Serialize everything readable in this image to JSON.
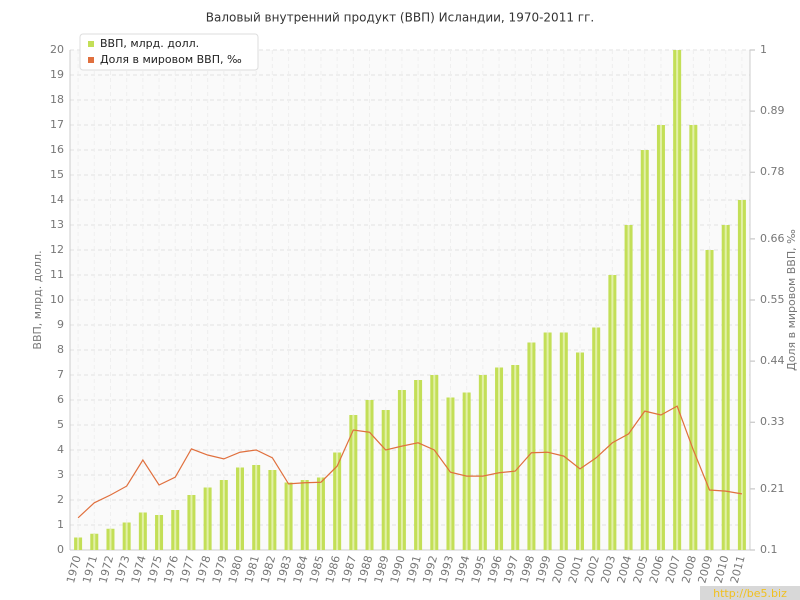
{
  "chart_data": {
    "type": "bar_line",
    "title": "Валовый внутренний продукт (ВВП) Исландии, 1970-2011 гг.",
    "y_label": "ВВП, млрд. долл.",
    "y2_label": "Доля в мировом ВВП, ‰",
    "watermark": "http://be5.biz",
    "legend": "top-left",
    "grid": true,
    "categories": [
      "1970",
      "1971",
      "1972",
      "1973",
      "1974",
      "1975",
      "1976",
      "1977",
      "1978",
      "1979",
      "1980",
      "1981",
      "1982",
      "1983",
      "1984",
      "1985",
      "1986",
      "1987",
      "1988",
      "1989",
      "1990",
      "1991",
      "1992",
      "1993",
      "1994",
      "1995",
      "1996",
      "1997",
      "1998",
      "1999",
      "2000",
      "2001",
      "2002",
      "2003",
      "2004",
      "2005",
      "2006",
      "2007",
      "2008",
      "2009",
      "2010",
      "2011"
    ],
    "series": [
      {
        "name": "ВВП, млрд. долл.",
        "color": "#c3df57",
        "kind": "bar",
        "values": [
          0.5,
          0.65,
          0.85,
          1.1,
          1.5,
          1.4,
          1.6,
          2.2,
          2.5,
          2.8,
          3.3,
          3.4,
          3.2,
          2.7,
          2.8,
          2.9,
          3.9,
          5.4,
          6.0,
          5.6,
          6.4,
          6.8,
          7.0,
          6.1,
          6.3,
          7.0,
          7.3,
          7.4,
          8.3,
          8.7,
          8.7,
          7.9,
          8.9,
          11,
          13,
          16,
          17,
          20,
          17,
          12,
          13,
          14
        ]
      },
      {
        "name": "Доля в мировом ВВП, ‰",
        "color": "#e0703e",
        "kind": "line",
        "axis": "y2",
        "values": [
          0.158,
          0.185,
          0.199,
          0.215,
          0.262,
          0.217,
          0.231,
          0.282,
          0.271,
          0.264,
          0.276,
          0.28,
          0.266,
          0.219,
          0.221,
          0.222,
          0.251,
          0.316,
          0.312,
          0.28,
          0.287,
          0.293,
          0.28,
          0.24,
          0.233,
          0.233,
          0.239,
          0.242,
          0.275,
          0.276,
          0.269,
          0.246,
          0.266,
          0.293,
          0.309,
          0.35,
          0.343,
          0.359,
          0.28,
          0.208,
          0.206,
          0.201
        ]
      }
    ],
    "ylim": [
      0,
      20
    ],
    "yticks": [
      0,
      1,
      2,
      3,
      4,
      5,
      6,
      7,
      8,
      9,
      10,
      11,
      12,
      13,
      14,
      15,
      16,
      17,
      18,
      19,
      20
    ],
    "y2lim": [
      0.1,
      1
    ],
    "y2ticks": [
      0.1,
      0.21,
      0.33,
      0.44,
      0.55,
      0.66,
      0.78,
      0.89,
      1
    ]
  }
}
